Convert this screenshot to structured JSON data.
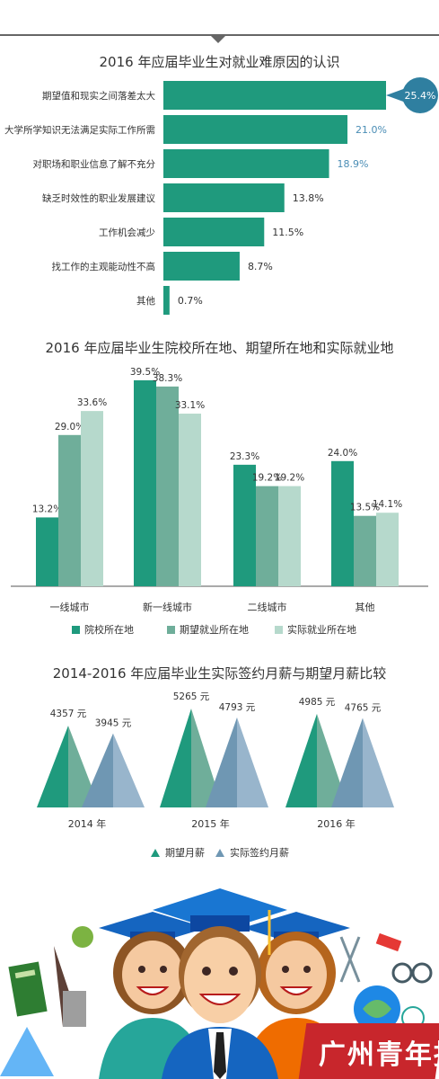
{
  "colors": {
    "teal_dark": "#1f9a7d",
    "teal_mid": "#6fae9a",
    "teal_light": "#b6d9cc",
    "blue_mid": "#6f97b3",
    "blue_light": "#98b5cc",
    "highlight_text": "#4a8db5"
  },
  "chart_data": [
    {
      "type": "bar",
      "orientation": "horizontal",
      "title": "2016 年应届毕业生对就业难原因的认识",
      "categories": [
        "期望值和现实之间落差太大",
        "大学所学知识无法满足实际工作所需",
        "对职场和职业信息了解不充分",
        "缺乏时效性的职业发展建议",
        "工作机会减少",
        "找工作的主观能动性不高",
        "其他"
      ],
      "values": [
        25.4,
        21.0,
        18.9,
        13.8,
        11.5,
        8.7,
        0.7
      ],
      "value_labels": [
        "25.4%",
        "21.0%",
        "18.9%",
        "13.8%",
        "11.5%",
        "8.7%",
        "0.7%"
      ],
      "xlim": [
        0,
        25.4
      ]
    },
    {
      "type": "bar",
      "title": "2016 年应届毕业生院校所在地、期望所在地和实际就业地",
      "categories": [
        "一线城市",
        "新一线城市",
        "二线城市",
        "其他"
      ],
      "series": [
        {
          "name": "院校所在地",
          "values": [
            13.2,
            39.5,
            23.3,
            24.0
          ],
          "labels": [
            "13.2%",
            "39.5%",
            "23.3%",
            "24.0%"
          ]
        },
        {
          "name": "期望就业所在地",
          "values": [
            29.0,
            38.3,
            19.2,
            13.5
          ],
          "labels": [
            "29.0%",
            "38.3%",
            "19.2%",
            "13.5%"
          ]
        },
        {
          "name": "实际就业所在地",
          "values": [
            33.6,
            33.1,
            19.2,
            14.1
          ],
          "labels": [
            "33.6%",
            "33.1%",
            "19.2%",
            "14.1%"
          ]
        }
      ],
      "ylim": [
        0,
        40
      ],
      "legend_position": "bottom"
    },
    {
      "type": "area",
      "shape": "triangle",
      "title": "2014-2016 年应届毕业生实际签约月薪与期望月薪比较",
      "categories": [
        "2014 年",
        "2015 年",
        "2016 年"
      ],
      "series": [
        {
          "name": "期望月薪",
          "values": [
            4357,
            5265,
            4985
          ],
          "labels": [
            "4357 元",
            "5265 元",
            "4985 元"
          ]
        },
        {
          "name": "实际签约月薪",
          "values": [
            3945,
            4793,
            4765
          ],
          "labels": [
            "3945 元",
            "4793 元",
            "4765 元"
          ]
        }
      ],
      "ylim": [
        0,
        5265
      ],
      "legend_position": "bottom"
    }
  ],
  "logo_text": "广州青年报"
}
